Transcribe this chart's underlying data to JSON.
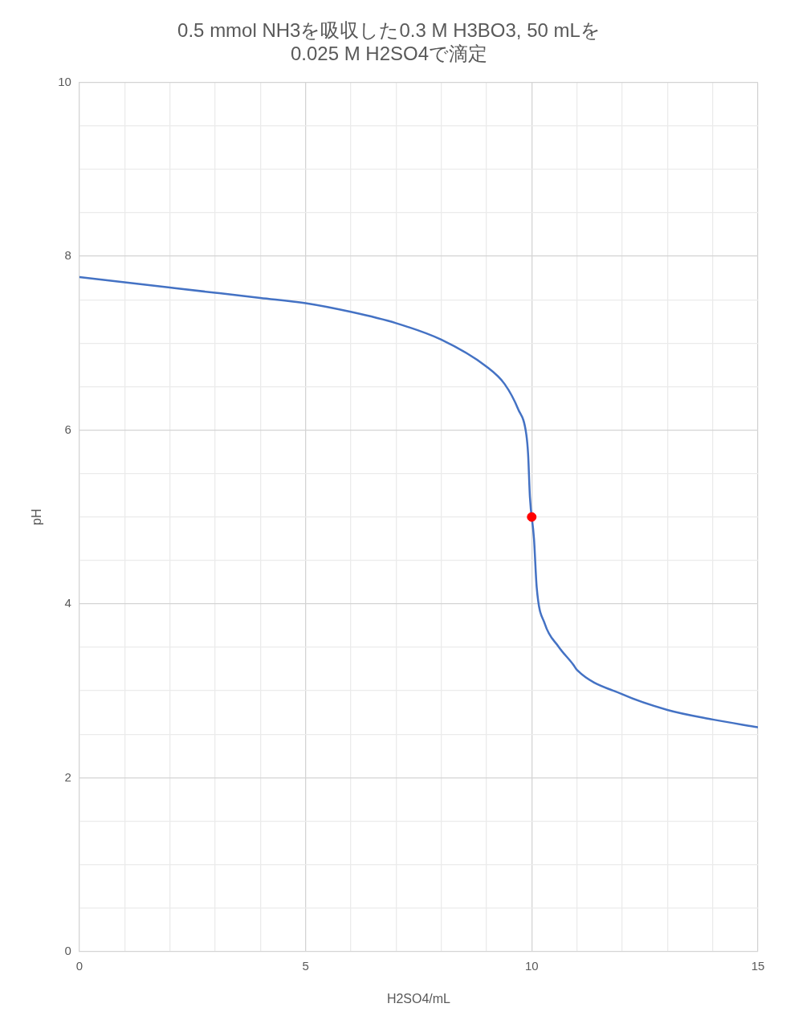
{
  "chart_data": {
    "type": "line",
    "title": "0.5 mmol NH3を吸収した0.3 M H3BO3, 50 mLを\n0.025 M H2SO4で滴定",
    "xlabel": "H2SO4/mL",
    "ylabel": "pH",
    "xlim": [
      0,
      15
    ],
    "ylim": [
      0,
      10
    ],
    "xticks": [
      0,
      {
        "value": 1,
        "label": null
      },
      {
        "value": 2,
        "label": null
      },
      {
        "value": 3,
        "label": null
      },
      {
        "value": 4,
        "label": null
      },
      5,
      {
        "value": 6,
        "label": null
      },
      {
        "value": 7,
        "label": null
      },
      {
        "value": 8,
        "label": null
      },
      {
        "value": 9,
        "label": null
      },
      10,
      {
        "value": 11,
        "label": null
      },
      {
        "value": 12,
        "label": null
      },
      {
        "value": 13,
        "label": null
      },
      {
        "value": 14,
        "label": null
      },
      15
    ],
    "yticks": [
      0,
      {
        "value": 0.5,
        "label": null
      },
      {
        "value": 1,
        "label": null
      },
      {
        "value": 1.5,
        "label": null
      },
      2,
      {
        "value": 2.5,
        "label": null
      },
      {
        "value": 3,
        "label": null
      },
      {
        "value": 3.5,
        "label": null
      },
      4,
      {
        "value": 4.5,
        "label": null
      },
      {
        "value": 5,
        "label": null
      },
      {
        "value": 5.5,
        "label": null
      },
      6,
      {
        "value": 6.5,
        "label": null
      },
      {
        "value": 7,
        "label": null
      },
      {
        "value": 7.5,
        "label": null
      },
      8,
      {
        "value": 8.5,
        "label": null
      },
      {
        "value": 9,
        "label": null
      },
      {
        "value": 9.5,
        "label": null
      },
      10
    ],
    "grid": true,
    "legend": false,
    "marker": "none",
    "line_style": "solid",
    "series": [
      {
        "type": "line",
        "color": "#4472c4",
        "x": [
          0,
          1,
          2,
          3,
          4,
          5,
          6,
          7,
          8,
          9,
          9.4,
          9.7,
          9.88,
          9.92,
          9.96,
          10.05,
          10.11,
          10.29,
          10.59,
          10.92,
          11,
          12,
          13,
          14,
          15
        ],
        "values": [
          7.76,
          7.7,
          7.64,
          7.58,
          7.52,
          7.46,
          7.36,
          7.23,
          7.04,
          6.73,
          6.53,
          6.24,
          5.95,
          5.72,
          5.23,
          4.75,
          4.19,
          3.77,
          3.51,
          3.3,
          3.24,
          2.96,
          2.78,
          2.67,
          2.58
        ]
      },
      {
        "type": "scatter",
        "color": "#ff0000",
        "marker": "circle",
        "x": [
          10
        ],
        "values": [
          5
        ]
      }
    ]
  }
}
